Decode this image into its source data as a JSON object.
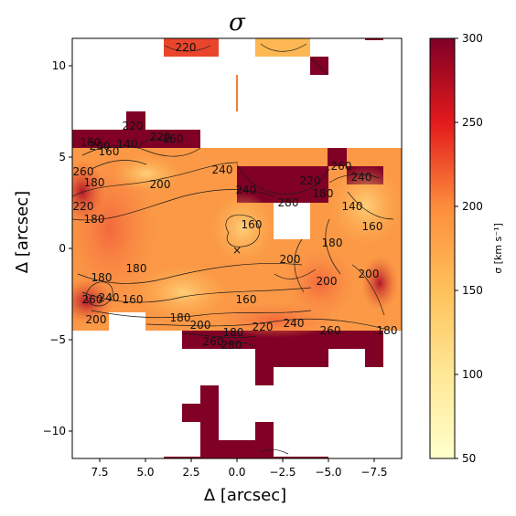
{
  "chart_data": {
    "type": "heatmap",
    "title": "σ",
    "xlabel": "Δ [arcsec]",
    "ylabel": "Δ [arcsec]",
    "xlim": [
      9,
      -9
    ],
    "ylim": [
      -11.5,
      11.5
    ],
    "x_ticks": [
      7.5,
      5.0,
      2.5,
      0.0,
      -2.5,
      -5.0,
      -7.5
    ],
    "x_tick_labels": [
      "7.5",
      "5.0",
      "2.5",
      "0.0",
      "−2.5",
      "−5.0",
      "−7.5"
    ],
    "y_ticks": [
      10,
      5,
      0,
      -5,
      -10
    ],
    "y_tick_labels": [
      "10",
      "5",
      "0",
      "−5",
      "−10"
    ],
    "grid": false,
    "colormap": "YlOrRd",
    "colorbar": {
      "label": "σ [km s⁻¹]",
      "range": [
        50,
        300
      ],
      "ticks": [
        50,
        100,
        150,
        200,
        250,
        300
      ],
      "tick_labels": [
        "50",
        "100",
        "150",
        "200",
        "250",
        "300"
      ]
    },
    "center_marker": {
      "symbol": "×",
      "x": 0.0,
      "y": 0.0
    },
    "contour_levels": [
      140,
      160,
      180,
      200,
      220,
      240,
      260,
      280,
      300
    ],
    "contour_labels": [
      {
        "text": "220",
        "x": 2.8,
        "y": 11.0
      },
      {
        "text": "220",
        "x": 5.7,
        "y": 6.7
      },
      {
        "text": "220",
        "x": 4.2,
        "y": 6.1
      },
      {
        "text": "180",
        "x": 8.0,
        "y": 5.8
      },
      {
        "text": "200",
        "x": 7.5,
        "y": 5.6
      },
      {
        "text": "140",
        "x": 6.0,
        "y": 5.7
      },
      {
        "text": "160",
        "x": 7.0,
        "y": 5.3
      },
      {
        "text": "260",
        "x": 3.5,
        "y": 6.0
      },
      {
        "text": "260",
        "x": 8.4,
        "y": 4.2
      },
      {
        "text": "180",
        "x": 7.8,
        "y": 3.6
      },
      {
        "text": "200",
        "x": 4.2,
        "y": 3.5
      },
      {
        "text": "240",
        "x": 0.8,
        "y": 4.3
      },
      {
        "text": "240",
        "x": -0.5,
        "y": 3.2
      },
      {
        "text": "280",
        "x": -2.8,
        "y": 2.5
      },
      {
        "text": "220",
        "x": -4.0,
        "y": 3.7
      },
      {
        "text": "180",
        "x": -4.7,
        "y": 3.0
      },
      {
        "text": "260",
        "x": -5.7,
        "y": 4.5
      },
      {
        "text": "240",
        "x": -6.8,
        "y": 3.9
      },
      {
        "text": "140",
        "x": -6.3,
        "y": 2.3
      },
      {
        "text": "160",
        "x": -7.4,
        "y": 1.2
      },
      {
        "text": "180",
        "x": 7.8,
        "y": 1.6
      },
      {
        "text": "220",
        "x": 8.4,
        "y": 2.3
      },
      {
        "text": "160",
        "x": -0.8,
        "y": 1.3
      },
      {
        "text": "200",
        "x": -2.9,
        "y": -0.6
      },
      {
        "text": "180",
        "x": -5.2,
        "y": 0.3
      },
      {
        "text": "180",
        "x": 5.5,
        "y": -1.1
      },
      {
        "text": "180",
        "x": 7.4,
        "y": -1.6
      },
      {
        "text": "200",
        "x": -4.9,
        "y": -1.8
      },
      {
        "text": "200",
        "x": -7.2,
        "y": -1.4
      },
      {
        "text": "240",
        "x": 7.0,
        "y": -2.7
      },
      {
        "text": "260",
        "x": 7.9,
        "y": -2.8
      },
      {
        "text": "160",
        "x": 5.7,
        "y": -2.8
      },
      {
        "text": "200",
        "x": 7.7,
        "y": -3.9
      },
      {
        "text": "160",
        "x": -0.5,
        "y": -2.8
      },
      {
        "text": "180",
        "x": 3.1,
        "y": -3.8
      },
      {
        "text": "200",
        "x": 2.0,
        "y": -4.2
      },
      {
        "text": "180",
        "x": 0.2,
        "y": -4.6
      },
      {
        "text": "220",
        "x": -1.4,
        "y": -4.3
      },
      {
        "text": "240",
        "x": -3.1,
        "y": -4.1
      },
      {
        "text": "260",
        "x": -5.1,
        "y": -4.5
      },
      {
        "text": "180",
        "x": -8.2,
        "y": -4.5
      },
      {
        "text": "260",
        "x": 1.3,
        "y": -5.1
      },
      {
        "text": "280",
        "x": 0.3,
        "y": -5.3
      }
    ]
  }
}
